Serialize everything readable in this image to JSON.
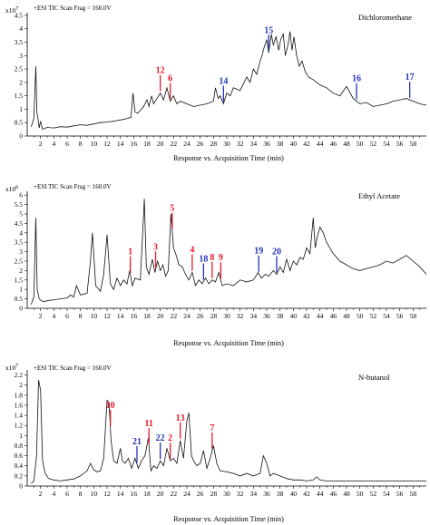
{
  "chart_data": [
    {
      "type": "line",
      "solvent": "Dichloromethane",
      "scan_label": "+ESI TIC Scan Frag = 160.0V",
      "y_exponent": "x10^7",
      "y_multiplier": "x10",
      "y_exp_power": "7",
      "xlabel": "Response vs. Acquisition Time (min)",
      "xlim": [
        0,
        60
      ],
      "ylim": [
        0,
        4.6
      ],
      "xticks": [
        "2",
        "4",
        "6",
        "8",
        "10",
        "12",
        "14",
        "16",
        "18",
        "20",
        "22",
        "24",
        "26",
        "28",
        "30",
        "32",
        "34",
        "36",
        "38",
        "40",
        "42",
        "44",
        "46",
        "48",
        "50",
        "52",
        "54",
        "56",
        "58"
      ],
      "yticks": [
        "0",
        "0.5",
        "1",
        "1.5",
        "2",
        "2.5",
        "3",
        "3.5",
        "4",
        "4.5"
      ],
      "x": [
        0.6,
        1.0,
        1.3,
        1.45,
        1.6,
        1.8,
        2.0,
        2.3,
        3,
        4,
        5,
        6,
        7,
        8,
        9,
        10,
        11,
        12,
        13,
        14,
        15,
        15.6,
        15.9,
        16.2,
        16.6,
        17,
        17.5,
        18,
        18.3,
        18.7,
        19,
        19.5,
        20,
        20.5,
        21,
        21.5,
        22,
        22.5,
        23,
        24,
        25,
        26,
        27,
        28,
        28.3,
        28.7,
        29,
        29.5,
        30,
        30.5,
        31,
        32,
        33,
        33.5,
        34,
        34.5,
        35,
        35.3,
        35.6,
        36,
        36.3,
        36.7,
        37,
        37.4,
        37.8,
        38.1,
        38.5,
        38.8,
        39.2,
        39.5,
        39.8,
        40.1,
        40.5,
        40.9,
        41.3,
        41.8,
        42.3,
        43,
        44,
        45,
        46,
        47,
        48,
        49,
        50,
        51,
        52,
        53,
        54,
        55,
        56,
        57,
        58,
        59,
        60
      ],
      "y": [
        0.35,
        0.65,
        2.6,
        0.9,
        0.7,
        0.3,
        0.55,
        0.25,
        0.32,
        0.3,
        0.35,
        0.33,
        0.38,
        0.42,
        0.4,
        0.45,
        0.5,
        0.52,
        0.55,
        0.6,
        0.65,
        0.7,
        1.6,
        0.9,
        0.85,
        0.95,
        1.1,
        1.35,
        1.1,
        1.5,
        1.2,
        1.4,
        1.6,
        1.35,
        1.8,
        1.3,
        1.5,
        1.2,
        1.3,
        1.2,
        1.1,
        1.15,
        1.2,
        1.3,
        1.8,
        1.4,
        1.5,
        1.2,
        1.6,
        1.5,
        1.8,
        1.7,
        2.2,
        2.0,
        2.5,
        2.3,
        2.8,
        3.0,
        3.3,
        3.6,
        3.1,
        3.8,
        3.4,
        3.7,
        3.2,
        3.6,
        3.8,
        3.0,
        3.4,
        3.9,
        3.2,
        3.7,
        3.0,
        2.6,
        2.8,
        2.4,
        2.2,
        2.1,
        1.9,
        1.8,
        1.6,
        1.5,
        1.85,
        1.4,
        1.2,
        1.25,
        1.1,
        1.15,
        1.2,
        1.3,
        1.35,
        1.4,
        1.3,
        1.2,
        1.15
      ],
      "annotations": [
        {
          "label": "12",
          "x": 20,
          "color": "#e8192c"
        },
        {
          "label": "6",
          "x": 21.5,
          "color": "#e8192c"
        },
        {
          "label": "14",
          "x": 29.5,
          "color": "#2233bb"
        },
        {
          "label": "15",
          "x": 36.3,
          "color": "#2233bb"
        },
        {
          "label": "16",
          "x": 49.5,
          "color": "#2233bb"
        },
        {
          "label": "17",
          "x": 57.5,
          "color": "#2233bb"
        }
      ]
    },
    {
      "type": "line",
      "solvent": "Ethyl Acetate",
      "scan_label": "+ESI TIC Scan Frag = 160.0V",
      "y_exponent": "x10^6",
      "y_multiplier": "x10",
      "y_exp_power": "6",
      "xlabel": "Response vs. Acquisition Time (min)",
      "xlim": [
        0,
        60
      ],
      "ylim": [
        0,
        6.2
      ],
      "xticks": [
        "2",
        "4",
        "6",
        "8",
        "10",
        "12",
        "14",
        "16",
        "18",
        "20",
        "22",
        "24",
        "26",
        "28",
        "30",
        "32",
        "34",
        "36",
        "38",
        "40",
        "42",
        "44",
        "46",
        "48",
        "50",
        "52",
        "54",
        "56",
        "58"
      ],
      "yticks": [
        "0",
        "0.5",
        "1",
        "1.5",
        "2",
        "2.5",
        "3",
        "3.5",
        "4",
        "4.5",
        "5",
        "5.5",
        "6"
      ],
      "x": [
        0.6,
        1.0,
        1.3,
        1.5,
        1.8,
        2.1,
        2.5,
        3,
        4,
        5,
        6,
        6.5,
        7,
        7.4,
        8,
        9,
        9.5,
        9.8,
        10.3,
        11,
        11.5,
        12,
        12.5,
        13,
        13.5,
        14,
        14.5,
        15,
        15.4,
        15.8,
        16.2,
        17,
        17.6,
        17.9,
        18.3,
        18.8,
        19.2,
        19.6,
        20,
        20.4,
        20.8,
        21.2,
        21.6,
        22,
        22.4,
        22.8,
        23.3,
        23.8,
        24.3,
        24.8,
        25.3,
        25.8,
        26.3,
        26.8,
        27.3,
        27.8,
        28.3,
        28.8,
        29.3,
        30,
        31,
        32,
        33,
        34,
        34.7,
        35.2,
        35.8,
        36.3,
        37,
        37.5,
        38,
        38.5,
        39,
        39.5,
        40,
        40.5,
        41,
        41.5,
        42,
        42.5,
        43,
        43.3,
        43.6,
        44,
        44.5,
        45,
        46,
        47,
        48,
        49,
        50,
        51,
        52,
        53,
        54,
        55,
        56,
        57,
        58,
        59,
        60
      ],
      "y": [
        0.2,
        0.6,
        4.8,
        1.0,
        0.5,
        0.4,
        0.35,
        0.4,
        0.45,
        0.5,
        0.55,
        0.7,
        0.6,
        1.2,
        0.7,
        0.8,
        2.5,
        4.0,
        1.2,
        0.9,
        1.8,
        3.9,
        1.3,
        1.0,
        1.6,
        1.2,
        1.5,
        1.3,
        2.0,
        1.2,
        1.6,
        1.5,
        5.8,
        2.2,
        1.8,
        2.6,
        1.9,
        2.5,
        2.0,
        2.3,
        1.7,
        2.0,
        5.0,
        3.2,
        2.8,
        2.3,
        2.2,
        1.8,
        1.5,
        1.9,
        1.2,
        1.5,
        1.3,
        1.6,
        1.3,
        1.5,
        1.4,
        1.9,
        1.2,
        1.3,
        1.2,
        1.5,
        1.4,
        1.5,
        1.9,
        1.6,
        1.8,
        1.7,
        2.0,
        1.8,
        2.2,
        1.9,
        2.6,
        2.0,
        2.5,
        2.3,
        2.7,
        2.6,
        3.2,
        2.9,
        4.8,
        3.2,
        3.8,
        4.3,
        4.0,
        3.5,
        2.9,
        2.5,
        2.3,
        2.1,
        2.0,
        2.1,
        2.2,
        2.3,
        2.5,
        2.4,
        2.6,
        2.8,
        2.5,
        2.2,
        1.8
      ],
      "annotations": [
        {
          "label": "1",
          "x": 15.5,
          "color": "#e8192c"
        },
        {
          "label": "3",
          "x": 19.3,
          "color": "#e8192c"
        },
        {
          "label": "5",
          "x": 21.8,
          "color": "#e8192c"
        },
        {
          "label": "4",
          "x": 24.8,
          "color": "#e8192c"
        },
        {
          "label": "18",
          "x": 26.5,
          "color": "#2233bb"
        },
        {
          "label": "8",
          "x": 27.8,
          "color": "#e8192c"
        },
        {
          "label": "9",
          "x": 29.1,
          "color": "#e8192c"
        },
        {
          "label": "19",
          "x": 34.8,
          "color": "#2233bb"
        },
        {
          "label": "20",
          "x": 37.5,
          "color": "#2233bb"
        }
      ]
    },
    {
      "type": "line",
      "solvent": "N-butanol",
      "scan_label": "+ESI TIC Scan Frag = 160.0V",
      "y_exponent": "x10^7",
      "y_multiplier": "x10",
      "y_exp_power": "7",
      "xlabel": "Response vs. Acquisition Time (min)",
      "xlim": [
        0,
        60
      ],
      "ylim": [
        0,
        2.3
      ],
      "xticks": [
        "2",
        "4",
        "6",
        "8",
        "10",
        "12",
        "14",
        "16",
        "18",
        "20",
        "22",
        "24",
        "26",
        "28",
        "30",
        "32",
        "34",
        "36",
        "38",
        "40",
        "42",
        "44",
        "46",
        "48",
        "50",
        "52",
        "54",
        "56",
        "58"
      ],
      "yticks": [
        "0",
        "0.2",
        "0.4",
        "0.6",
        "0.8",
        "1",
        "1.2",
        "1.4",
        "1.6",
        "1.8",
        "2",
        "2.2"
      ],
      "x": [
        0.6,
        1.0,
        1.4,
        1.7,
        2.0,
        2.3,
        2.7,
        3.2,
        4,
        5,
        6,
        7,
        8,
        9,
        9.5,
        10,
        10.5,
        11,
        11.5,
        12,
        12.3,
        12.6,
        13,
        13.5,
        14,
        14.3,
        14.7,
        15.2,
        15.7,
        16.2,
        16.7,
        17.2,
        17.7,
        18.2,
        18.6,
        19,
        19.5,
        20,
        20.5,
        21,
        21.5,
        22,
        22.5,
        23,
        23.5,
        24,
        24.3,
        24.7,
        25,
        25.5,
        26,
        26.5,
        27,
        27.5,
        28,
        28.5,
        29,
        30,
        31,
        32,
        33,
        34,
        35,
        35.5,
        36,
        36.5,
        37,
        38,
        39,
        40,
        41,
        42,
        43,
        43.5,
        44,
        45,
        46,
        47,
        48,
        49,
        50,
        51,
        52,
        53,
        54,
        55,
        56,
        57,
        58,
        59,
        60
      ],
      "y": [
        0.05,
        0.1,
        0.6,
        2.1,
        1.9,
        0.5,
        0.25,
        0.15,
        0.12,
        0.1,
        0.12,
        0.14,
        0.2,
        0.3,
        0.45,
        0.32,
        0.28,
        0.3,
        0.55,
        1.7,
        1.65,
        0.9,
        0.5,
        0.45,
        0.75,
        0.5,
        0.45,
        0.55,
        0.35,
        0.55,
        0.35,
        0.5,
        0.6,
        0.95,
        0.3,
        0.4,
        0.35,
        0.5,
        0.4,
        0.75,
        0.5,
        0.55,
        0.45,
        0.9,
        0.55,
        1.3,
        1.45,
        0.6,
        0.5,
        0.4,
        0.45,
        0.7,
        0.35,
        0.55,
        0.8,
        0.45,
        0.3,
        0.28,
        0.25,
        0.2,
        0.25,
        0.2,
        0.25,
        0.6,
        0.45,
        0.2,
        0.25,
        0.2,
        0.15,
        0.12,
        0.12,
        0.1,
        0.12,
        0.18,
        0.12,
        0.1,
        0.1,
        0.1,
        0.1,
        0.1,
        0.1,
        0.1,
        0.1,
        0.1,
        0.1,
        0.1,
        0.1,
        0.1,
        0.1,
        0.1,
        0.1
      ],
      "annotations": [
        {
          "label": "10",
          "x": 12.5,
          "color": "#e8192c"
        },
        {
          "label": "21",
          "x": 16.5,
          "color": "#2233bb"
        },
        {
          "label": "11",
          "x": 18.3,
          "color": "#e8192c"
        },
        {
          "label": "22",
          "x": 20.0,
          "color": "#2233bb"
        },
        {
          "label": "2",
          "x": 21.5,
          "color": "#e8192c"
        },
        {
          "label": "13",
          "x": 23.0,
          "color": "#e8192c"
        },
        {
          "label": "7",
          "x": 27.8,
          "color": "#e8192c"
        }
      ]
    }
  ]
}
